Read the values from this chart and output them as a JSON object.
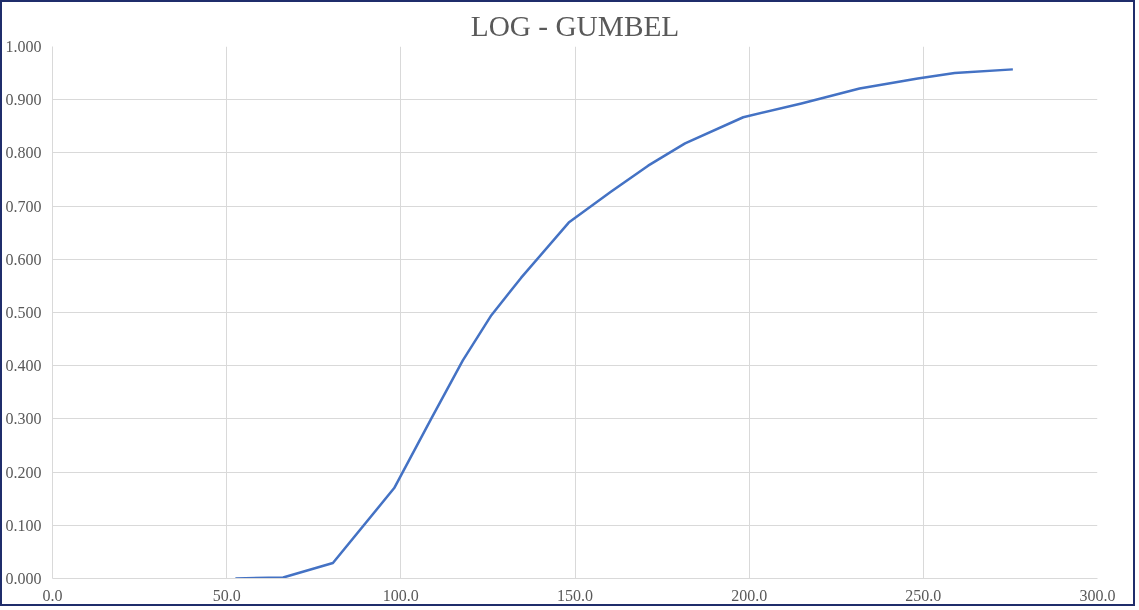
{
  "chart_data": {
    "type": "line",
    "title": "LOG - GUMBEL",
    "x": [
      52.5,
      66.2,
      80.5,
      98.1,
      108.7,
      117.8,
      126.0,
      134.5,
      148.2,
      160.3,
      171.0,
      181.6,
      198.3,
      215.0,
      231.7,
      248.4,
      259.0,
      275.7
    ],
    "values": [
      0.0,
      0.002,
      0.029,
      0.17,
      0.3,
      0.41,
      0.495,
      0.565,
      0.669,
      0.727,
      0.776,
      0.818,
      0.867,
      0.893,
      0.921,
      0.94,
      0.95,
      0.957
    ],
    "color": "#4472c4",
    "xlim": [
      0,
      300
    ],
    "xticks": [
      {
        "value": 0,
        "label": "0.0"
      },
      {
        "value": 50,
        "label": "50.0"
      },
      {
        "value": 100,
        "label": "100.0"
      },
      {
        "value": 150,
        "label": "150.0"
      },
      {
        "value": 200,
        "label": "200.0"
      },
      {
        "value": 250,
        "label": "250.0"
      },
      {
        "value": 300,
        "label": "300.0"
      }
    ],
    "ylim": [
      0,
      1
    ],
    "yticks": [
      {
        "value": 0,
        "label": "0.000"
      },
      {
        "value": 0.1,
        "label": "0.100"
      },
      {
        "value": 0.2,
        "label": "0.200"
      },
      {
        "value": 0.3,
        "label": "0.300"
      },
      {
        "value": 0.4,
        "label": "0.400"
      },
      {
        "value": 0.5,
        "label": "0.500"
      },
      {
        "value": 0.6,
        "label": "0.600"
      },
      {
        "value": 0.7,
        "label": "0.700"
      },
      {
        "value": 0.8,
        "label": "0.800"
      },
      {
        "value": 0.9,
        "label": "0.900"
      },
      {
        "value": 1.0,
        "label": "1.000"
      }
    ],
    "grid": true,
    "marker": "none",
    "line_style": "solid"
  }
}
